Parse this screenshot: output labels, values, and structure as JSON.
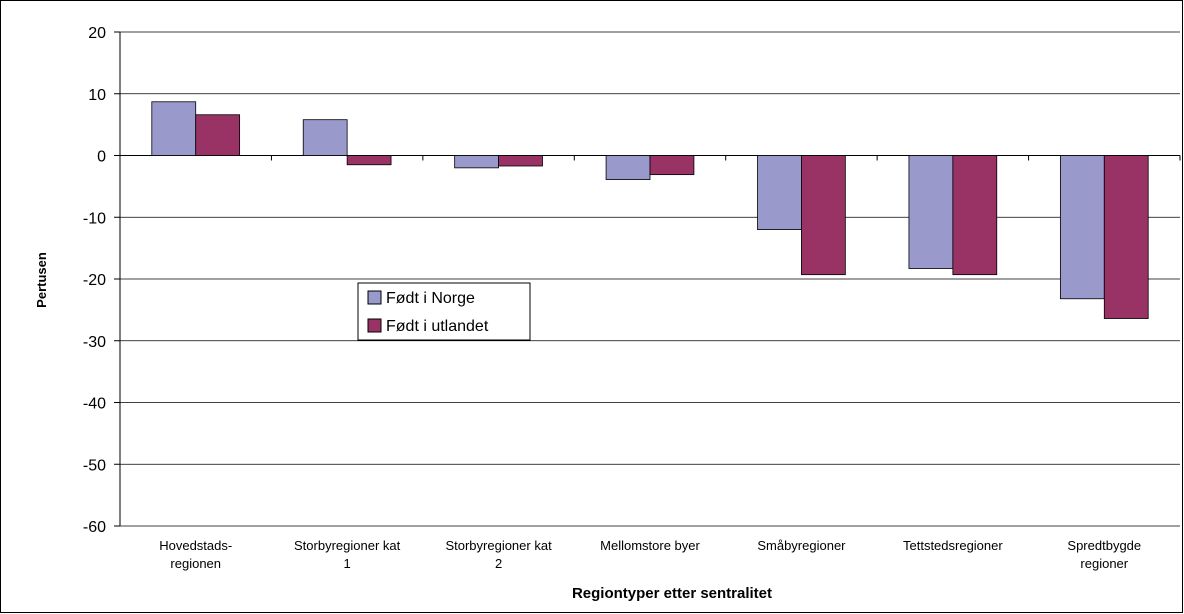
{
  "chart_data": {
    "type": "bar",
    "x_label": "Regiontyper etter sentralitet",
    "y_label": "Pertusen",
    "categories": [
      "Hovedstads-\nregionen",
      "Storbyregioner kat\n1",
      "Storbyregioner kat\n2",
      "Mellomstore byer",
      "Småbyregioner",
      "Tettstedsregioner",
      "Spredtbygde\nregioner"
    ],
    "series": [
      {
        "name": "Født i Norge",
        "color": "#9999cc",
        "values": [
          8.7,
          5.8,
          -2.0,
          -3.9,
          -12.0,
          -18.3,
          -23.2
        ]
      },
      {
        "name": "Født i utlandet",
        "color": "#993366",
        "values": [
          6.6,
          -1.5,
          -1.7,
          -3.1,
          -19.3,
          -19.3,
          -26.4
        ]
      }
    ],
    "ylim": [
      -60,
      20
    ],
    "yticks": [
      -60,
      -50,
      -40,
      -30,
      -20,
      -10,
      0,
      10,
      20
    ],
    "grid": true,
    "legend_position": "left"
  }
}
